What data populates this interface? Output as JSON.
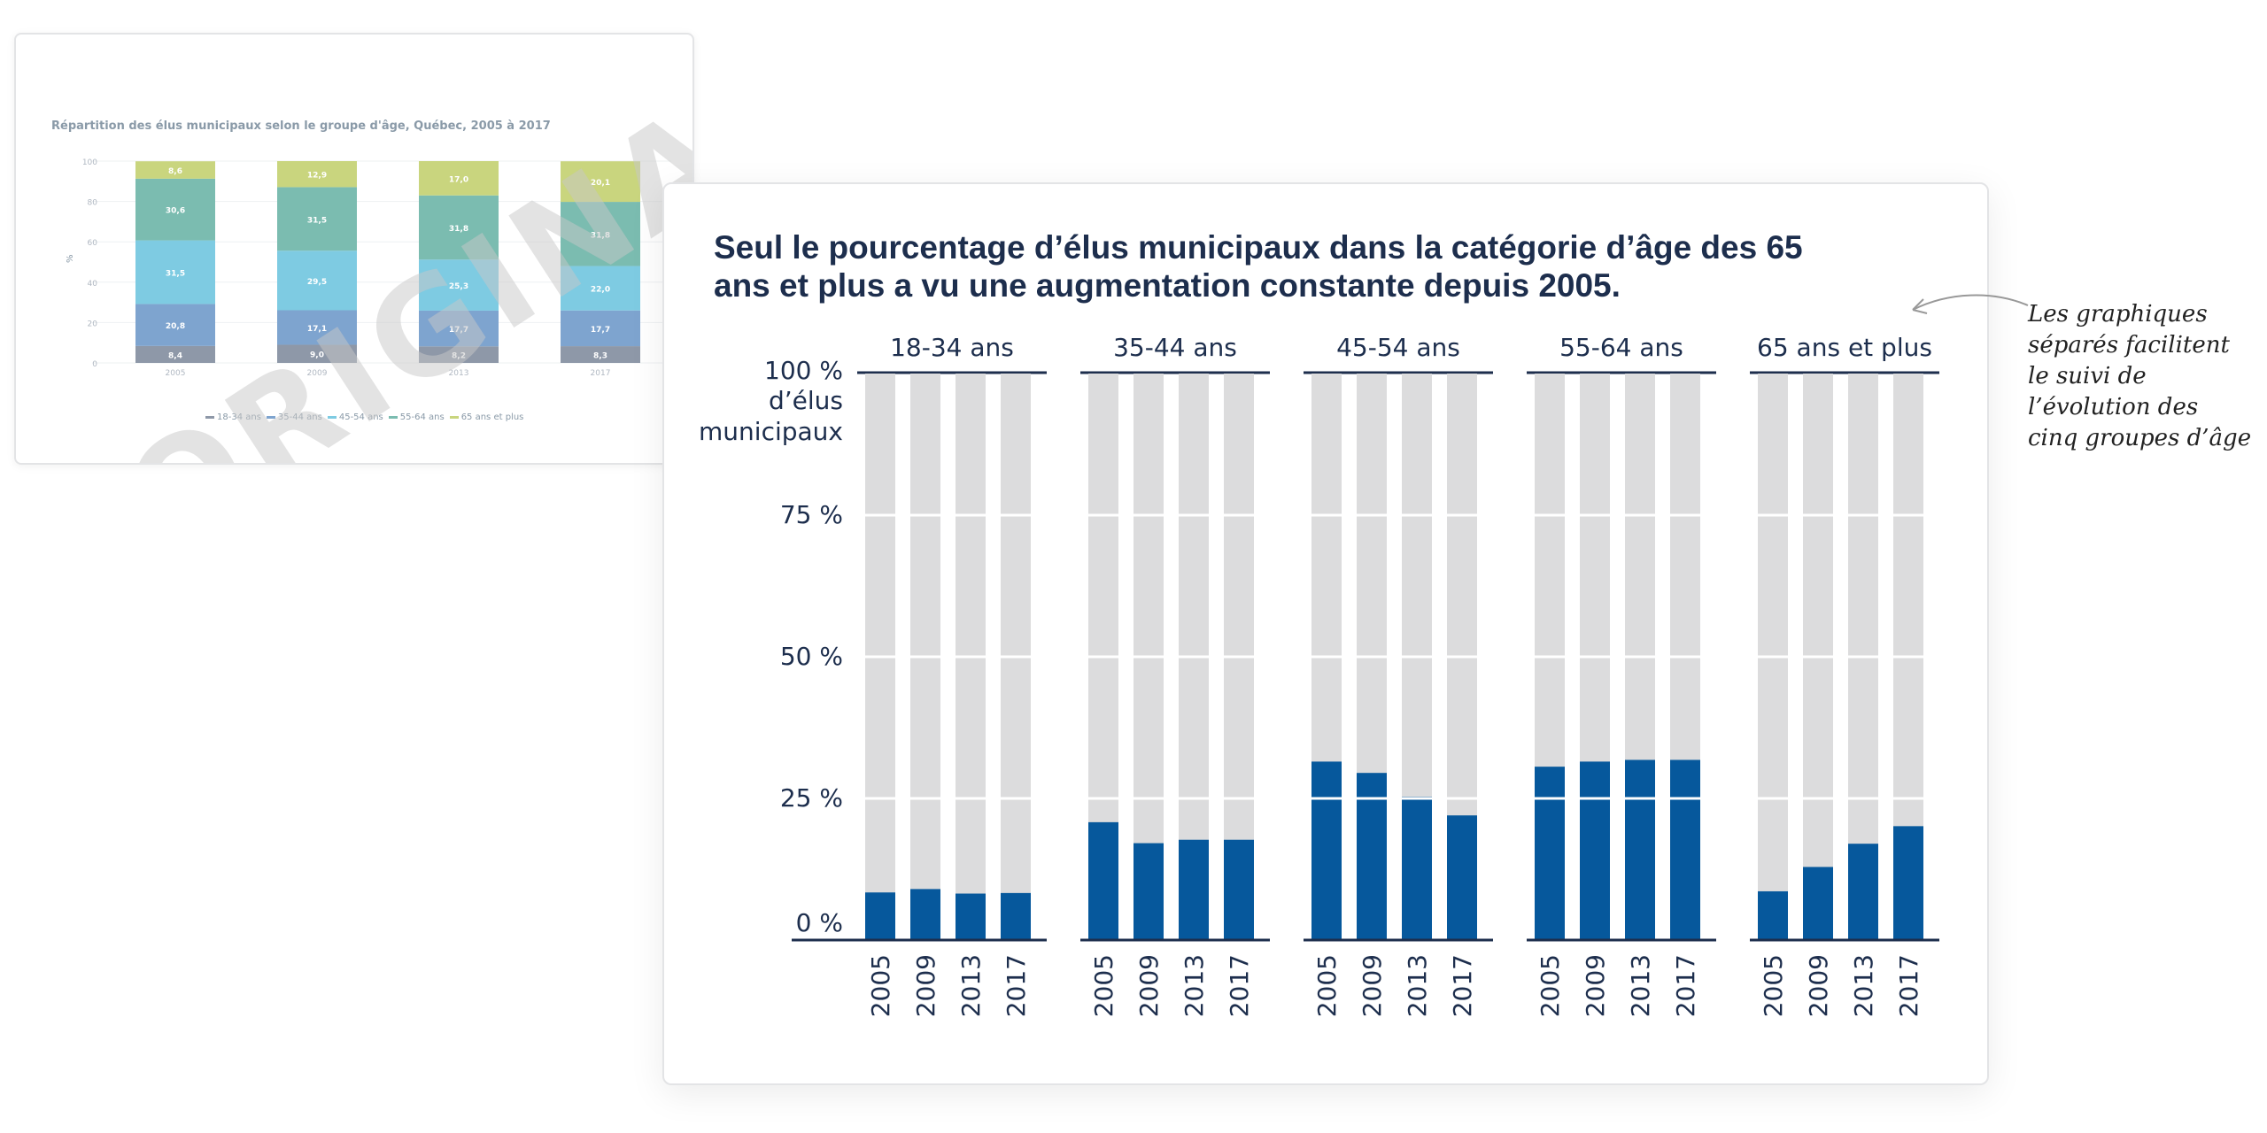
{
  "original": {
    "title": "Répartition des élus municipaux selon le groupe d'âge, Québec, 2005 à 2017",
    "watermark": "ORIGINAL",
    "y_ticks": [
      "0",
      "20",
      "40",
      "60",
      "80",
      "100"
    ],
    "y_label": "%",
    "years": [
      "2005",
      "2009",
      "2013",
      "2017"
    ],
    "legend": [
      "18-34 ans",
      "35-44 ans",
      "45-54 ans",
      "55-64 ans",
      "65 ans et plus"
    ],
    "colors": [
      "#8e98a8",
      "#7ea4cf",
      "#7ecbe2",
      "#7bbcb0",
      "#c9d57e"
    ],
    "values": [
      [
        8.4,
        20.8,
        31.5,
        30.6,
        8.6
      ],
      [
        9.0,
        17.1,
        29.5,
        31.5,
        12.9
      ],
      [
        8.2,
        17.7,
        25.3,
        31.8,
        17.0
      ],
      [
        8.3,
        17.7,
        22.0,
        31.8,
        20.1
      ]
    ],
    "labels": [
      [
        "8,4",
        "20,8",
        "31,5",
        "30,6",
        "8,6"
      ],
      [
        "9,0",
        "17,1",
        "29,5",
        "31,5",
        "12,9"
      ],
      [
        "8,2",
        "17,7",
        "25,3",
        "31,8",
        "17,0"
      ],
      [
        "8,3",
        "17,7",
        "22,0",
        "31,8",
        "20,1"
      ]
    ]
  },
  "main": {
    "title": "Seul le pourcentage d’élus municipaux dans la catégorie d’âge des 65 ans et plus a vu une augmentation constante depuis 2005.",
    "y_axis_unit_line1": "d’élus",
    "y_axis_unit_line2": "municipaux",
    "colors": {
      "bar": "#06589c",
      "background_bar": "#dcdcdd",
      "text": "#1d2e4d"
    }
  },
  "annotation": {
    "lines": [
      "Les graphiques",
      "séparés facilitent",
      "le suivi de",
      "l’évolution des",
      "cinq groupes d’âge"
    ]
  },
  "chart_data": {
    "type": "bar",
    "title": "Seul le pourcentage d’élus municipaux dans la catégorie d’âge des 65 ans et plus a vu une augmentation constante depuis 2005.",
    "ylabel": "d’élus municipaux",
    "ylim": [
      0,
      100
    ],
    "y_ticks": [
      "0 %",
      "25 %",
      "50 %",
      "75 %",
      "100 %"
    ],
    "categories": [
      "2005",
      "2009",
      "2013",
      "2017"
    ],
    "panels": [
      {
        "name": "18-34 ans",
        "values": [
          8.4,
          9.0,
          8.2,
          8.3
        ]
      },
      {
        "name": "35-44 ans",
        "values": [
          20.8,
          17.1,
          17.7,
          17.7
        ]
      },
      {
        "name": "45-54 ans",
        "values": [
          31.5,
          29.5,
          25.3,
          22.0
        ]
      },
      {
        "name": "55-64 ans",
        "values": [
          30.6,
          31.5,
          31.8,
          31.8
        ]
      },
      {
        "name": "65 ans et plus",
        "values": [
          8.6,
          12.9,
          17.0,
          20.1
        ]
      }
    ]
  }
}
